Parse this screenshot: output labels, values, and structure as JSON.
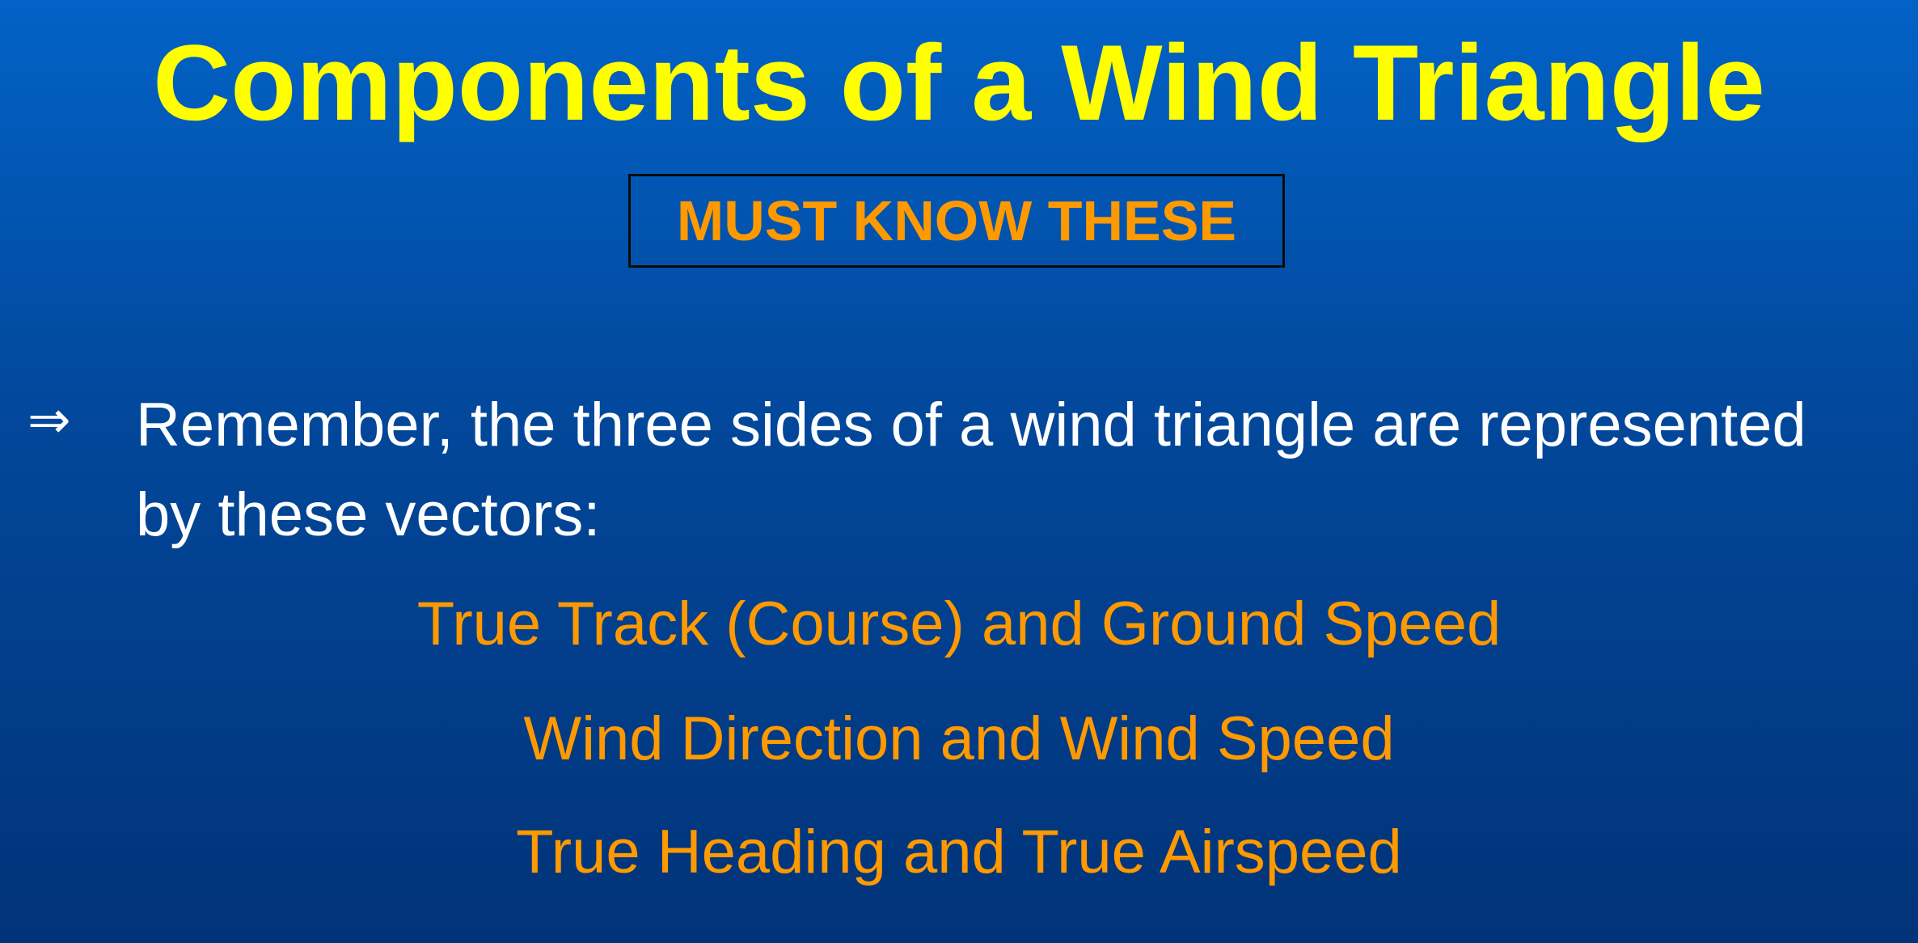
{
  "slide": {
    "title": "Components of a Wind Triangle",
    "badge": "MUST KNOW THESE",
    "bullet": {
      "arrow": "⇒",
      "line1": "Remember, the three sides of a wind triangle are represented",
      "line2": "by these vectors:"
    },
    "vectors": [
      "True Track (Course) and Ground Speed",
      "Wind Direction and Wind Speed",
      "True Heading and True Airspeed"
    ]
  },
  "colors": {
    "background_top": "#0262c6",
    "background_bottom": "#013378",
    "title": "#ffff00",
    "accent": "#ff9900",
    "body_text": "#ffffff"
  }
}
